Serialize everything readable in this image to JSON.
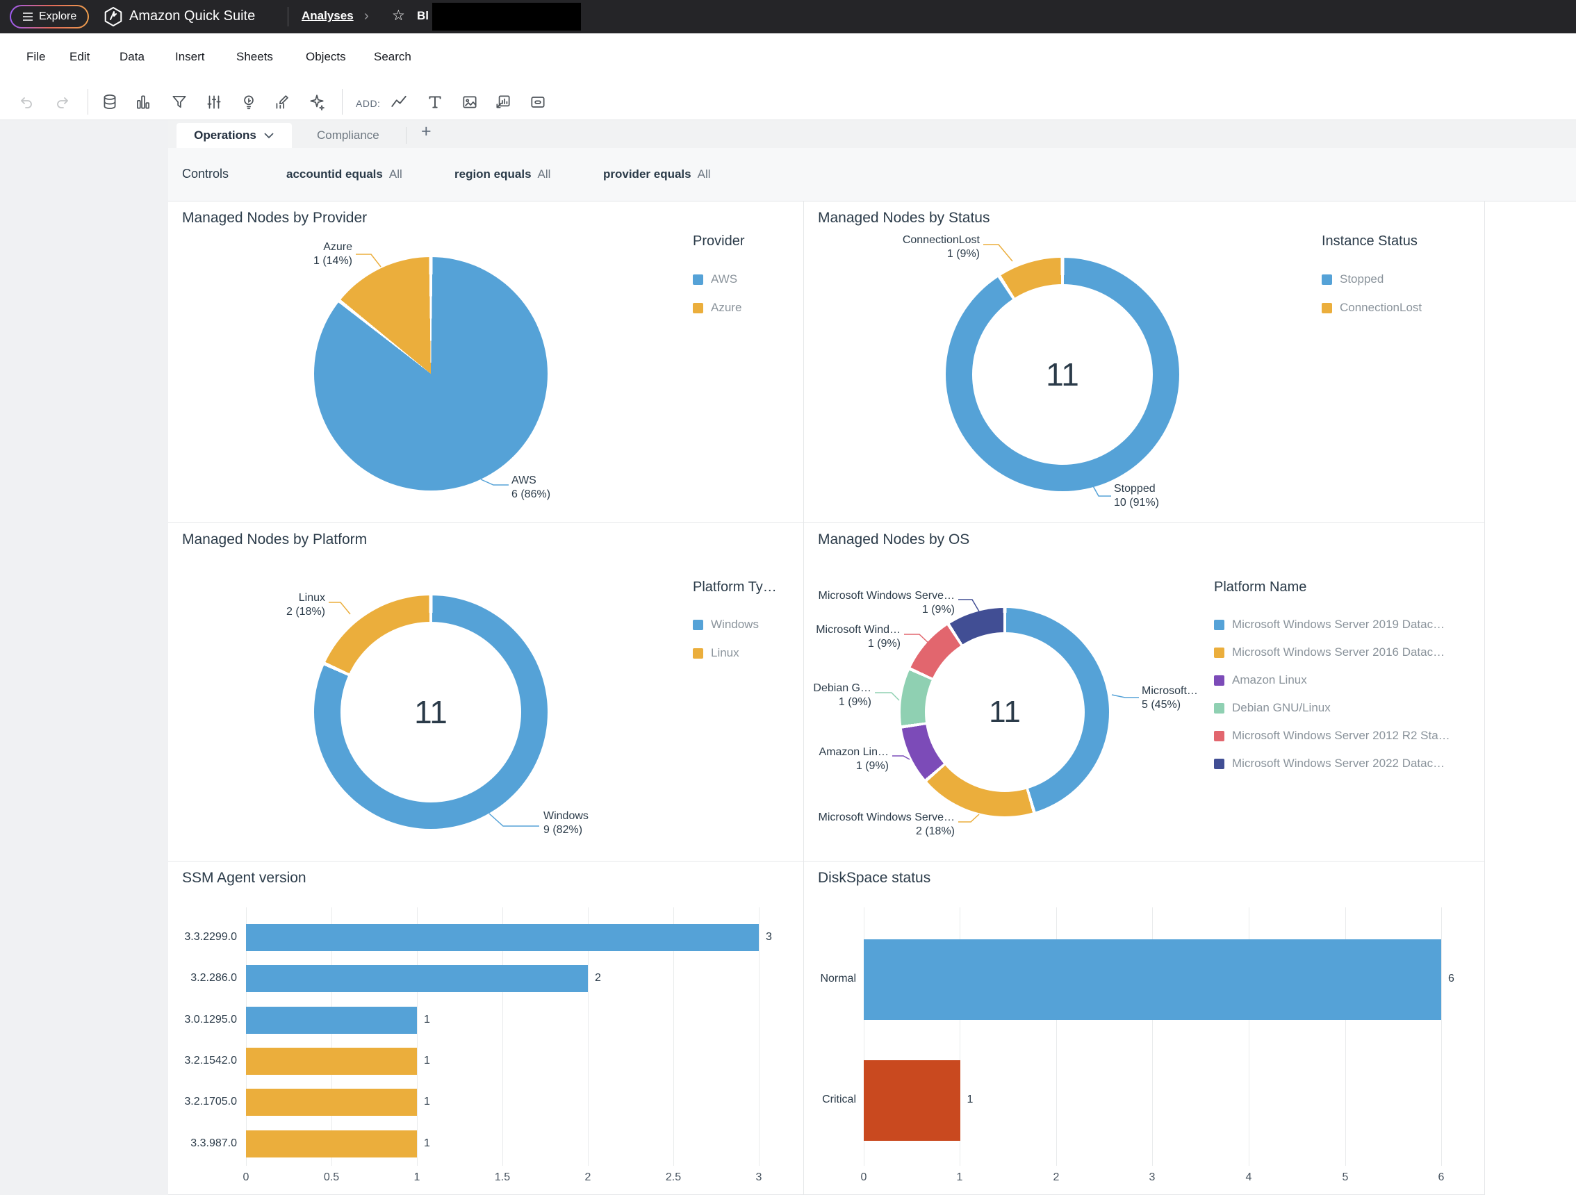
{
  "header": {
    "explore_label": "Explore",
    "app_title": "Amazon Quick Suite",
    "breadcrumb": "Analyses",
    "doc_title_prefix": "Bl"
  },
  "menu": {
    "items": [
      "File",
      "Edit",
      "Data",
      "Insert",
      "Sheets",
      "Objects",
      "Search"
    ]
  },
  "toolbar": {
    "add_label": "ADD:",
    "tool_icon_names": [
      "undo-icon",
      "redo-icon",
      "datasets-icon",
      "visual-types-icon",
      "filter-icon",
      "parameters-icon",
      "insights-icon",
      "calculated-field-icon",
      "ai-sparkle-icon"
    ],
    "add_icon_names": [
      "line-chart-icon",
      "text-icon",
      "image-icon",
      "visual-container-icon",
      "embed-icon"
    ]
  },
  "tabs": {
    "active": "Operations",
    "inactive": "Compliance",
    "add_label": "+"
  },
  "controls": {
    "label": "Controls",
    "filters": [
      {
        "name": "accountid equals",
        "value": "All"
      },
      {
        "name": "region equals",
        "value": "All"
      },
      {
        "name": "provider equals",
        "value": "All"
      }
    ]
  },
  "chart_data": [
    {
      "type": "pie",
      "title": "Managed Nodes by Provider",
      "legend_title": "Provider",
      "legend_position": "right",
      "slices": [
        {
          "name": "AWS",
          "value": 6,
          "percent": "86%",
          "color": "#55A2D7"
        },
        {
          "name": "Azure",
          "value": 1,
          "percent": "14%",
          "color": "#EBAE3C"
        }
      ],
      "callouts": [
        {
          "label": "Azure",
          "value_label": "1 (14%)",
          "slice": 1
        },
        {
          "label": "AWS",
          "value_label": "6 (86%)",
          "slice": 0
        }
      ]
    },
    {
      "type": "donut",
      "title": "Managed Nodes by Status",
      "legend_title": "Instance Status",
      "legend_position": "right",
      "center_total": "11",
      "slices": [
        {
          "name": "Stopped",
          "value": 10,
          "percent": "91%",
          "color": "#55A2D7"
        },
        {
          "name": "ConnectionLost",
          "value": 1,
          "percent": "9%",
          "color": "#EBAE3C"
        }
      ],
      "callouts": [
        {
          "label": "ConnectionLost",
          "value_label": "1 (9%)",
          "slice": 1
        },
        {
          "label": "Stopped",
          "value_label": "10 (91%)",
          "slice": 0
        }
      ]
    },
    {
      "type": "donut",
      "title": "Managed Nodes by Platform",
      "legend_title": "Platform Ty…",
      "legend_position": "right",
      "center_total": "11",
      "slices": [
        {
          "name": "Windows",
          "value": 9,
          "percent": "82%",
          "color": "#55A2D7"
        },
        {
          "name": "Linux",
          "value": 2,
          "percent": "18%",
          "color": "#EBAE3C"
        }
      ],
      "callouts": [
        {
          "label": "Linux",
          "value_label": "2 (18%)",
          "slice": 1
        },
        {
          "label": "Windows",
          "value_label": "9 (82%)",
          "slice": 0
        }
      ]
    },
    {
      "type": "donut",
      "title": "Managed Nodes by OS",
      "legend_title": "Platform Name",
      "legend_position": "right",
      "center_total": "11",
      "slices": [
        {
          "name": "Microsoft Windows Server 2019 Datac…",
          "value": 5,
          "percent": "45%",
          "color": "#55A2D7"
        },
        {
          "name": "Microsoft Windows Server 2016 Datac…",
          "value": 2,
          "percent": "18%",
          "color": "#EBAE3C"
        },
        {
          "name": "Amazon Linux",
          "value": 1,
          "percent": "9%",
          "color": "#7C4BB8"
        },
        {
          "name": "Debian GNU/Linux",
          "value": 1,
          "percent": "9%",
          "color": "#8FD0B2"
        },
        {
          "name": "Microsoft Windows Server 2012 R2 Sta…",
          "value": 1,
          "percent": "9%",
          "color": "#E2666E"
        },
        {
          "name": "Microsoft Windows Server 2022 Datac…",
          "value": 1,
          "percent": "9%",
          "color": "#414E94"
        }
      ],
      "callouts": [
        {
          "label": "Microsoft Windows Serve…",
          "value_label": "1 (9%)",
          "slice": 5
        },
        {
          "label": "Microsoft Wind…",
          "value_label": "1 (9%)",
          "slice": 4
        },
        {
          "label": "Debian G…",
          "value_label": "1 (9%)",
          "slice": 3
        },
        {
          "label": "Amazon Lin…",
          "value_label": "1 (9%)",
          "slice": 2
        },
        {
          "label": "Microsoft Windows Serve…",
          "value_label": "2 (18%)",
          "slice": 1
        },
        {
          "label": "Microsoft…",
          "value_label": "5 (45%)",
          "slice": 0
        }
      ]
    },
    {
      "type": "bar",
      "title": "SSM Agent version",
      "categories": [
        "3.3.2299.0",
        "3.2.286.0",
        "3.0.1295.0",
        "3.2.1542.0",
        "3.2.1705.0",
        "3.3.987.0"
      ],
      "values": [
        3,
        2,
        1,
        1,
        1,
        1
      ],
      "value_labels": [
        "3",
        "2",
        "1",
        "1",
        "1",
        "1"
      ],
      "bar_colors": [
        "#55A2D7",
        "#55A2D7",
        "#55A2D7",
        "#EBAE3C",
        "#EBAE3C",
        "#EBAE3C"
      ],
      "x_ticks": [
        "0",
        "0.5",
        "1",
        "1.5",
        "2",
        "2.5",
        "3"
      ],
      "xlim": [
        0,
        3
      ],
      "grid": true
    },
    {
      "type": "bar",
      "title": "DiskSpace status",
      "categories": [
        "Normal",
        "Critical"
      ],
      "values": [
        6,
        1
      ],
      "value_labels": [
        "6",
        "1"
      ],
      "bar_colors": [
        "#55A2D7",
        "#C9491F"
      ],
      "x_ticks": [
        "0",
        "1",
        "2",
        "3",
        "4",
        "5",
        "6"
      ],
      "xlim": [
        0,
        6
      ],
      "grid": true
    }
  ]
}
